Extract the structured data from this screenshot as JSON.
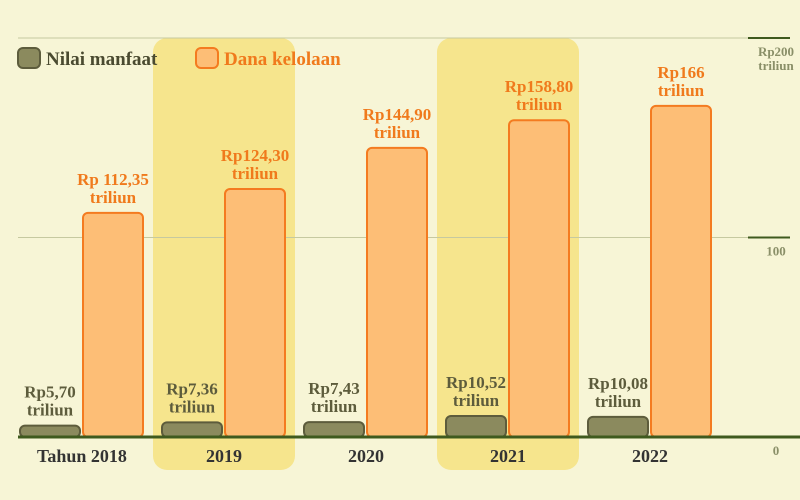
{
  "chart_data": {
    "type": "bar",
    "categories": [
      "Tahun 2018",
      "2019",
      "2020",
      "2021",
      "2022"
    ],
    "series": [
      {
        "name": "Nilai manfaat",
        "color": "#8b8a5e",
        "values": [
          5.7,
          7.36,
          7.43,
          10.52,
          10.08
        ],
        "value_labels": [
          "Rp5,70 triliun",
          "Rp7,36 triliun",
          "Rp7,43 triliun",
          "Rp10,52 triliun",
          "Rp10,08 triliun"
        ]
      },
      {
        "name": "Dana kelolaan",
        "color": "#fdbe76",
        "values": [
          112.35,
          124.3,
          144.9,
          158.8,
          166
        ],
        "value_labels": [
          "Rp 112,35 triliun",
          "Rp124,30 triliun",
          "Rp144,90 triliun",
          "Rp158,80 triliun",
          "Rp166 triliun"
        ]
      }
    ],
    "ylim": [
      0,
      200
    ],
    "yticks": [
      0,
      100,
      {
        "value": 200,
        "label": "Rp200 triliun"
      }
    ],
    "grid": true
  }
}
